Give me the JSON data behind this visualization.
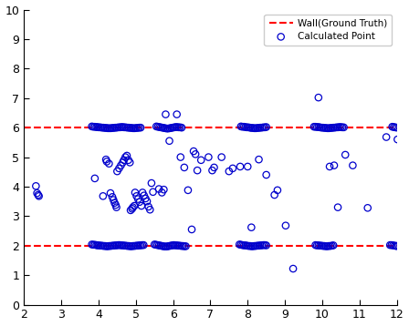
{
  "wall_y1": 6.0,
  "wall_y2": 2.0,
  "xlim": [
    2,
    12
  ],
  "ylim": [
    0,
    10
  ],
  "xticks": [
    2,
    3,
    4,
    5,
    6,
    7,
    8,
    9,
    10,
    11,
    12
  ],
  "yticks": [
    0,
    1,
    2,
    3,
    4,
    5,
    6,
    7,
    8,
    9,
    10
  ],
  "wall_color": "#FF0000",
  "point_color": "#0000CC",
  "legend_wall": "Wall(Ground Truth)",
  "legend_point": "Calculated Point",
  "wall6_x": [
    3.82,
    3.86,
    3.9,
    3.94,
    3.97,
    4.01,
    4.05,
    4.09,
    4.13,
    4.17,
    4.21,
    4.25,
    4.29,
    4.33,
    4.37,
    4.41,
    4.45,
    4.49,
    4.53,
    4.57,
    4.61,
    4.65,
    4.69,
    4.73,
    4.77,
    4.81,
    4.85,
    4.89,
    4.93,
    4.97,
    5.01,
    5.05,
    5.09,
    5.13,
    5.55,
    5.59,
    5.63,
    5.67,
    5.71,
    5.75,
    5.79,
    5.83,
    5.87,
    5.91,
    5.95,
    5.99,
    6.03,
    6.07,
    6.11,
    6.15,
    6.19,
    6.23,
    7.82,
    7.86,
    7.9,
    7.94,
    7.98,
    8.02,
    8.06,
    8.1,
    8.14,
    8.18,
    8.22,
    8.26,
    8.3,
    8.34,
    8.38,
    8.42,
    8.46,
    8.5,
    9.78,
    9.82,
    9.86,
    9.9,
    9.94,
    9.98,
    10.02,
    10.06,
    10.1,
    10.14,
    10.18,
    10.22,
    10.26,
    10.3,
    10.34,
    10.38,
    10.42,
    10.46,
    10.5,
    10.54,
    10.58,
    11.88,
    11.92,
    11.96,
    12.0
  ],
  "wall6_y": [
    6.04,
    6.03,
    6.03,
    6.02,
    6.02,
    6.01,
    6.01,
    6.0,
    6.0,
    5.99,
    5.99,
    5.98,
    5.98,
    5.98,
    5.99,
    5.99,
    6.0,
    6.0,
    6.01,
    6.01,
    6.02,
    6.02,
    6.01,
    6.01,
    6.0,
    6.0,
    5.99,
    5.99,
    5.98,
    5.98,
    5.99,
    5.99,
    6.0,
    6.0,
    6.04,
    6.03,
    6.02,
    6.01,
    6.0,
    5.99,
    5.98,
    5.97,
    5.97,
    5.98,
    5.99,
    6.0,
    6.01,
    6.02,
    6.02,
    6.01,
    6.01,
    6.0,
    6.04,
    6.03,
    6.03,
    6.02,
    6.01,
    6.01,
    6.0,
    5.99,
    5.99,
    5.98,
    5.98,
    5.99,
    5.99,
    6.0,
    6.0,
    6.01,
    6.01,
    6.02,
    6.03,
    6.03,
    6.02,
    6.02,
    6.01,
    6.0,
    6.0,
    5.99,
    5.99,
    5.98,
    5.98,
    5.99,
    5.99,
    6.0,
    6.0,
    6.01,
    6.01,
    6.02,
    6.02,
    6.01,
    6.01,
    6.03,
    6.02,
    6.01,
    6.0
  ],
  "wall2_x": [
    3.82,
    3.86,
    3.9,
    3.94,
    3.97,
    4.01,
    4.05,
    4.09,
    4.13,
    4.17,
    4.21,
    4.25,
    4.29,
    4.33,
    4.37,
    4.41,
    4.45,
    4.49,
    4.53,
    4.57,
    4.61,
    4.65,
    4.69,
    4.73,
    4.77,
    4.81,
    4.85,
    4.89,
    4.93,
    4.97,
    5.01,
    5.05,
    5.09,
    5.13,
    5.17,
    5.21,
    5.5,
    5.54,
    5.58,
    5.62,
    5.66,
    5.7,
    5.74,
    5.78,
    5.82,
    5.86,
    5.9,
    5.94,
    5.98,
    6.02,
    6.06,
    6.1,
    6.14,
    6.18,
    6.22,
    6.26,
    6.3,
    6.34,
    7.78,
    7.82,
    7.86,
    7.9,
    7.94,
    7.98,
    8.02,
    8.06,
    8.1,
    8.14,
    8.18,
    8.22,
    8.26,
    8.3,
    8.34,
    8.38,
    8.42,
    8.46,
    8.5,
    9.82,
    9.86,
    9.9,
    9.94,
    9.98,
    10.02,
    10.06,
    10.1,
    10.14,
    10.18,
    10.22,
    10.26,
    10.3,
    11.82,
    11.86,
    11.9,
    11.94,
    11.98,
    12.0
  ],
  "wall2_y": [
    2.04,
    2.03,
    2.03,
    2.02,
    2.01,
    2.01,
    2.0,
    2.0,
    1.99,
    1.99,
    1.98,
    1.98,
    1.99,
    1.99,
    2.0,
    2.0,
    2.01,
    2.01,
    2.02,
    2.02,
    2.01,
    2.01,
    2.0,
    2.0,
    1.99,
    1.99,
    1.98,
    1.98,
    1.99,
    1.99,
    2.0,
    2.0,
    2.01,
    2.01,
    2.02,
    2.02,
    2.04,
    2.03,
    2.02,
    2.01,
    2.0,
    1.99,
    1.98,
    1.97,
    1.97,
    1.98,
    1.99,
    2.0,
    2.01,
    2.02,
    2.01,
    2.01,
    2.0,
    2.0,
    1.99,
    1.99,
    1.98,
    1.98,
    2.04,
    2.03,
    2.02,
    2.01,
    2.01,
    2.0,
    1.99,
    1.99,
    1.98,
    1.98,
    1.99,
    1.99,
    2.0,
    2.0,
    2.01,
    2.01,
    2.02,
    2.02,
    2.01,
    2.02,
    2.01,
    2.01,
    2.0,
    2.0,
    1.99,
    1.99,
    1.98,
    1.98,
    1.99,
    1.99,
    2.0,
    2.01,
    2.02,
    2.02,
    2.01,
    2.0,
    1.99,
    1.99
  ],
  "scatter_x": [
    2.32,
    2.35,
    2.38,
    2.4,
    3.9,
    4.12,
    4.2,
    4.22,
    4.28,
    4.32,
    4.37,
    4.4,
    4.43,
    4.46,
    4.48,
    4.5,
    4.55,
    4.6,
    4.65,
    4.68,
    4.72,
    4.76,
    4.8,
    4.84,
    4.86,
    4.9,
    4.92,
    4.96,
    4.98,
    5.02,
    5.06,
    5.1,
    5.15,
    5.18,
    5.22,
    5.26,
    5.3,
    5.34,
    5.38,
    5.42,
    5.46,
    5.62,
    5.7,
    5.75,
    5.8,
    5.9,
    6.1,
    6.2,
    6.3,
    6.4,
    6.5,
    6.55,
    6.6,
    6.65,
    6.75,
    6.95,
    7.05,
    7.1,
    7.3,
    7.5,
    7.6,
    7.8,
    8.0,
    8.1,
    8.3,
    8.5,
    8.72,
    8.8,
    9.02,
    9.22,
    9.9,
    10.2,
    10.32,
    10.42,
    10.62,
    10.82,
    11.22,
    11.72,
    12.02
  ],
  "scatter_y": [
    4.02,
    3.78,
    3.72,
    3.68,
    4.28,
    3.68,
    4.92,
    4.85,
    4.78,
    3.78,
    3.65,
    3.55,
    3.45,
    3.38,
    3.3,
    4.52,
    4.62,
    4.72,
    4.82,
    4.9,
    5.0,
    5.05,
    4.9,
    4.82,
    3.2,
    3.25,
    3.3,
    3.35,
    3.8,
    3.68,
    3.58,
    3.48,
    3.35,
    3.8,
    3.7,
    3.6,
    3.5,
    3.32,
    3.22,
    4.12,
    3.82,
    3.92,
    3.8,
    3.9,
    6.45,
    5.55,
    6.45,
    5.0,
    4.65,
    3.88,
    2.55,
    5.2,
    5.1,
    4.55,
    4.9,
    5.0,
    4.55,
    4.65,
    5.0,
    4.52,
    4.62,
    4.68,
    4.68,
    2.62,
    4.92,
    4.4,
    3.72,
    3.88,
    2.68,
    1.22,
    7.02,
    4.68,
    4.72,
    3.3,
    5.08,
    4.72,
    3.28,
    5.68,
    5.6
  ]
}
